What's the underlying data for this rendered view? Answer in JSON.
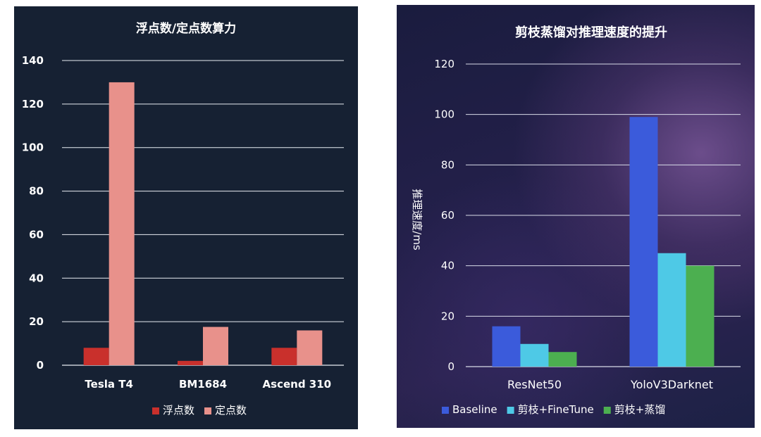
{
  "chart_data": [
    {
      "type": "bar",
      "title": "浮点数/定点数算力",
      "categories": [
        "Tesla T4",
        "BM1684",
        "Ascend 310"
      ],
      "series": [
        {
          "name": "浮点数",
          "values": [
            8,
            2,
            8
          ]
        },
        {
          "name": "定点数",
          "values": [
            130,
            17.6,
            16
          ]
        }
      ],
      "xlabel": "",
      "ylabel": "",
      "ylim": [
        0,
        140
      ],
      "yticks": [
        0,
        20,
        40,
        60,
        80,
        100,
        120,
        140
      ],
      "grid": true,
      "legend_position": "bottom",
      "colors": [
        "#c9302c",
        "#e8918b"
      ]
    },
    {
      "type": "bar",
      "title": "剪枝蒸馏对推理速度的提升",
      "categories": [
        "ResNet50",
        "YoloV3Darknet"
      ],
      "series": [
        {
          "name": "Baseline",
          "values": [
            16,
            99
          ]
        },
        {
          "name": "剪枝+FineTune",
          "values": [
            9,
            45
          ]
        },
        {
          "name": "剪枝+蒸馏",
          "values": [
            5.8,
            40
          ]
        }
      ],
      "xlabel": "",
      "ylabel": "推理速度/ms",
      "ylim": [
        0,
        120
      ],
      "yticks": [
        0,
        20,
        40,
        60,
        80,
        100,
        120
      ],
      "grid": true,
      "legend_position": "bottom",
      "colors": [
        "#3b5bdb",
        "#4ec9e6",
        "#4caf50"
      ]
    }
  ]
}
